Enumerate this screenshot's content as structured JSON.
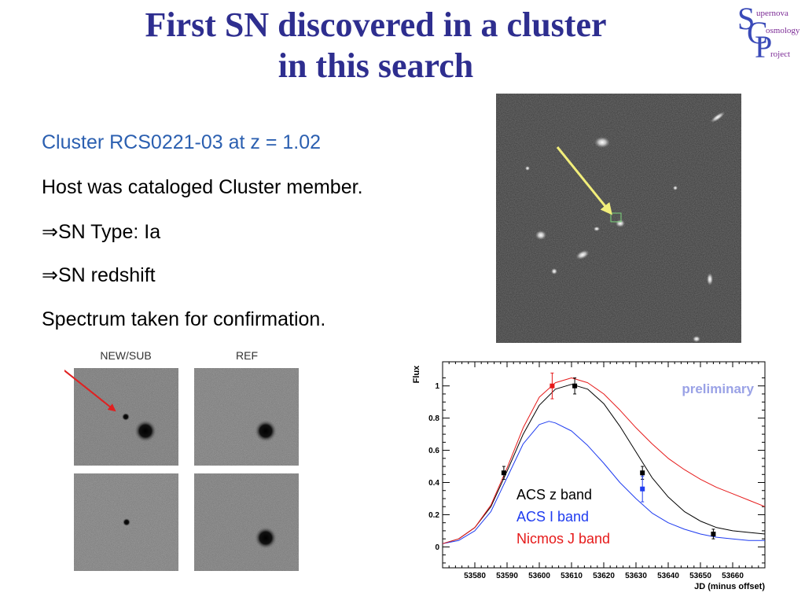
{
  "slide": {
    "title_line1": "First SN discovered in a cluster",
    "title_line2": "in this search",
    "logo": {
      "letter_s1": "S",
      "word1": "upernova",
      "letter_c": "C",
      "word2": "osmology",
      "letter_p": "P",
      "word3": "roject"
    },
    "bullets": [
      "Cluster RCS0221-03 at z = 1.02",
      "Host was cataloged Cluster member.",
      "⇒SN Type: Ia",
      "⇒SN redshift",
      "Spectrum taken for confirmation."
    ],
    "stamps": {
      "label_new": "NEW/SUB",
      "label_ref": "REF"
    },
    "colors": {
      "title": "#2e2e8f",
      "accent_text": "#2b5fb0",
      "sky_arrow": "#f2ee7a",
      "stamp_arrow": "#e02020",
      "watermark": "#9aa2e6"
    }
  },
  "chart_data": {
    "type": "line",
    "title": "",
    "xlabel": "JD (minus offset)",
    "ylabel": "Flux",
    "xlim": [
      53570,
      53670
    ],
    "ylim": [
      -0.13,
      1.15
    ],
    "xticks": [
      53580,
      53590,
      53600,
      53610,
      53620,
      53630,
      53640,
      53650,
      53660
    ],
    "yticks": [
      0,
      0.2,
      0.4,
      0.6,
      0.8,
      1
    ],
    "grid": false,
    "legend_position": "bottom-center",
    "annotation": "preliminary",
    "series": [
      {
        "name": "ACS z band",
        "color": "#000000",
        "curve": [
          [
            53570,
            0.02
          ],
          [
            53575,
            0.05
          ],
          [
            53580,
            0.12
          ],
          [
            53585,
            0.25
          ],
          [
            53590,
            0.47
          ],
          [
            53595,
            0.7
          ],
          [
            53600,
            0.88
          ],
          [
            53605,
            0.98
          ],
          [
            53610,
            1.01
          ],
          [
            53615,
            0.98
          ],
          [
            53620,
            0.89
          ],
          [
            53625,
            0.75
          ],
          [
            53630,
            0.59
          ],
          [
            53635,
            0.43
          ],
          [
            53640,
            0.31
          ],
          [
            53645,
            0.22
          ],
          [
            53650,
            0.16
          ],
          [
            53655,
            0.12
          ],
          [
            53660,
            0.1
          ],
          [
            53665,
            0.09
          ],
          [
            53670,
            0.08
          ]
        ],
        "points": [
          {
            "x": 53589,
            "y": 0.46,
            "err": 0.04
          },
          {
            "x": 53611,
            "y": 1.0,
            "err": 0.05
          },
          {
            "x": 53632,
            "y": 0.46,
            "err": 0.04
          },
          {
            "x": 53654,
            "y": 0.08,
            "err": 0.03
          }
        ]
      },
      {
        "name": "ACS I band",
        "color": "#1f3cf0",
        "curve": [
          [
            53570,
            0.02
          ],
          [
            53575,
            0.04
          ],
          [
            53580,
            0.1
          ],
          [
            53585,
            0.22
          ],
          [
            53590,
            0.43
          ],
          [
            53595,
            0.64
          ],
          [
            53600,
            0.76
          ],
          [
            53603,
            0.78
          ],
          [
            53605,
            0.77
          ],
          [
            53610,
            0.72
          ],
          [
            53615,
            0.63
          ],
          [
            53620,
            0.52
          ],
          [
            53625,
            0.4
          ],
          [
            53630,
            0.3
          ],
          [
            53635,
            0.21
          ],
          [
            53640,
            0.15
          ],
          [
            53645,
            0.11
          ],
          [
            53650,
            0.08
          ],
          [
            53655,
            0.06
          ],
          [
            53660,
            0.05
          ],
          [
            53665,
            0.04
          ],
          [
            53670,
            0.04
          ]
        ],
        "points": [
          {
            "x": 53632,
            "y": 0.36,
            "err": 0.08
          }
        ]
      },
      {
        "name": "Nicmos J band",
        "color": "#e61a1a",
        "curve": [
          [
            53570,
            0.02
          ],
          [
            53575,
            0.05
          ],
          [
            53580,
            0.12
          ],
          [
            53585,
            0.26
          ],
          [
            53590,
            0.49
          ],
          [
            53595,
            0.74
          ],
          [
            53600,
            0.93
          ],
          [
            53605,
            1.02
          ],
          [
            53610,
            1.05
          ],
          [
            53615,
            1.02
          ],
          [
            53620,
            0.95
          ],
          [
            53625,
            0.85
          ],
          [
            53630,
            0.74
          ],
          [
            53635,
            0.64
          ],
          [
            53640,
            0.55
          ],
          [
            53645,
            0.48
          ],
          [
            53650,
            0.42
          ],
          [
            53655,
            0.37
          ],
          [
            53660,
            0.33
          ],
          [
            53665,
            0.29
          ],
          [
            53670,
            0.25
          ]
        ],
        "points": [
          {
            "x": 53604,
            "y": 1.0,
            "err": 0.08
          }
        ]
      }
    ]
  }
}
